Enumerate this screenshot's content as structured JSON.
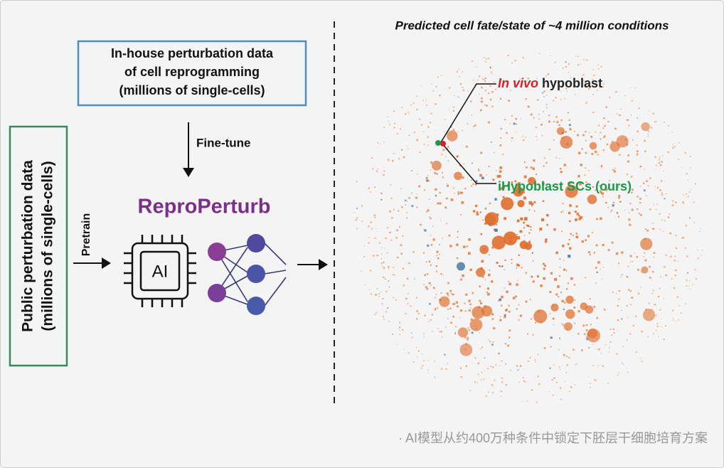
{
  "left_box": {
    "line1": "Public perturbation data",
    "line2": "(millions of single-cells)"
  },
  "pretrain_label": "Pretrain",
  "top_box": {
    "line1": "In-house perturbation data",
    "line2": "of cell reprogramming",
    "line3": "(millions of single-cells)"
  },
  "finetune_label": "Fine-tune",
  "model_name": "ReproPerturb",
  "chip_label": "AI",
  "right_title": "Predicted cell fate/state of ~4 million conditions",
  "annotation_red": {
    "italic": "In vivo",
    "rest": " hypoblast"
  },
  "annotation_green": "iHypoblast SCs (ours)",
  "caption": "· AI模型从约400万种条件中锁定下胚层干细胞培育方案"
}
